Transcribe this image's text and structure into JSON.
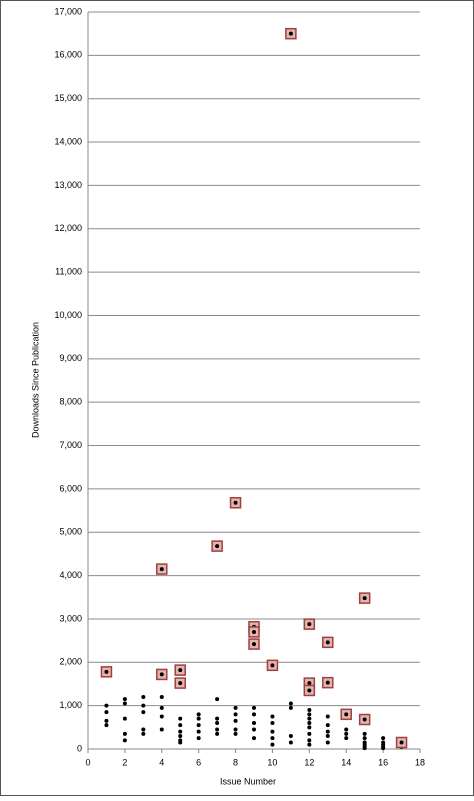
{
  "chart_data": {
    "type": "scatter",
    "x_label": "Issue Number",
    "y_label": "Downloads Since Publication",
    "xlim": [
      0,
      18
    ],
    "xticks": [
      0,
      2,
      4,
      6,
      8,
      10,
      12,
      14,
      16,
      18
    ],
    "ylim": [
      0,
      17000
    ],
    "yticks": [
      0,
      {
        "value": 1000,
        "label": "1,000"
      },
      {
        "value": 2000,
        "label": "2,000"
      },
      {
        "value": 3000,
        "label": "3,000"
      },
      {
        "value": 4000,
        "label": "4,000"
      },
      {
        "value": 5000,
        "label": "5,000"
      },
      {
        "value": 6000,
        "label": "6,000"
      },
      {
        "value": 7000,
        "label": "7,000"
      },
      {
        "value": 8000,
        "label": "8,000"
      },
      {
        "value": 9000,
        "label": "9,000"
      },
      {
        "value": 10000,
        "label": "10,000"
      },
      {
        "value": 11000,
        "label": "11,000"
      },
      {
        "value": 12000,
        "label": "12,000"
      },
      {
        "value": 13000,
        "label": "13,000"
      },
      {
        "value": 14000,
        "label": "14,000"
      },
      {
        "value": 15000,
        "label": "15,000"
      },
      {
        "value": 16000,
        "label": "16,000"
      },
      {
        "value": 17000,
        "label": "17,000"
      }
    ],
    "grid": true,
    "series": [
      {
        "color": "#000000",
        "marker": "dot",
        "x": [
          1,
          1,
          1,
          1,
          2,
          2,
          2,
          2,
          2,
          3,
          3,
          3,
          3,
          3,
          4,
          4,
          4,
          4,
          5,
          5,
          5,
          5,
          5,
          5,
          6,
          6,
          6,
          6,
          6,
          7,
          7,
          7,
          7,
          7,
          8,
          8,
          8,
          8,
          8,
          9,
          9,
          9,
          9,
          9,
          10,
          10,
          10,
          10,
          10,
          11,
          11,
          11,
          11,
          12,
          12,
          12,
          12,
          12,
          12,
          12,
          12,
          13,
          13,
          13,
          13,
          13,
          14,
          14,
          14,
          15,
          15,
          15,
          15,
          15,
          15,
          16,
          16,
          16,
          16,
          16,
          17
        ],
        "values": [
          1000,
          850,
          650,
          550,
          1150,
          1050,
          700,
          350,
          200,
          1200,
          1000,
          850,
          450,
          350,
          1200,
          950,
          750,
          450,
          700,
          550,
          400,
          300,
          200,
          150,
          800,
          700,
          550,
          400,
          250,
          1150,
          700,
          600,
          450,
          350,
          950,
          800,
          650,
          450,
          350,
          950,
          800,
          600,
          450,
          250,
          750,
          600,
          400,
          250,
          100,
          1050,
          950,
          300,
          150,
          900,
          800,
          700,
          600,
          500,
          350,
          200,
          100,
          750,
          550,
          400,
          300,
          150,
          450,
          350,
          250,
          350,
          250,
          150,
          100,
          50,
          20,
          250,
          150,
          100,
          50,
          20,
          50
        ]
      },
      {
        "color": "#a0403c",
        "marker": "square",
        "x": [
          1,
          4,
          4,
          5,
          5,
          7,
          8,
          9,
          9,
          9,
          10,
          11,
          12,
          12,
          12,
          13,
          13,
          14,
          15,
          15,
          17
        ],
        "values": [
          1780,
          4150,
          1720,
          1820,
          1520,
          4680,
          5680,
          2820,
          2700,
          2420,
          1930,
          16500,
          2880,
          1520,
          1350,
          2460,
          1530,
          800,
          3480,
          680,
          150
        ]
      }
    ]
  }
}
